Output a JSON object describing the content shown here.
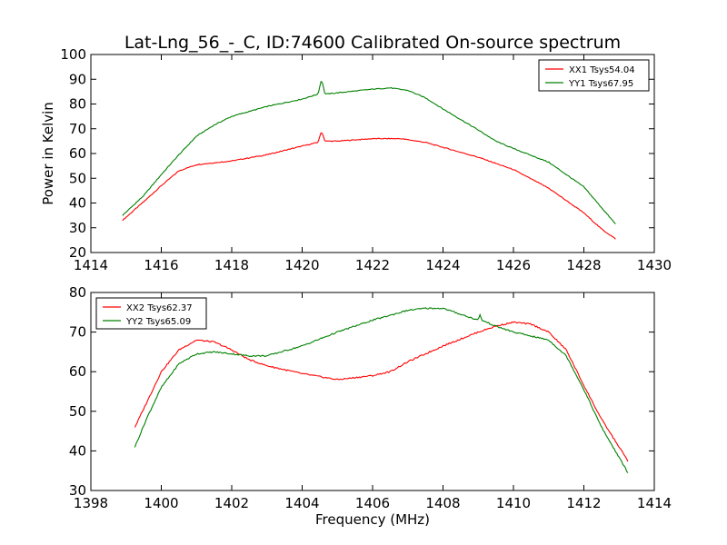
{
  "title": "Lat-Lng_56_-_C, ID:74600 Calibrated On-source spectrum",
  "xlabel": "Frequency (MHz)",
  "ylabel": "Power in Kelvin",
  "chart_data": [
    {
      "type": "line",
      "xlim": [
        1414,
        1430
      ],
      "ylim": [
        20,
        100
      ],
      "xticks": [
        1414,
        1416,
        1418,
        1420,
        1422,
        1424,
        1426,
        1428,
        1430
      ],
      "yticks": [
        20,
        30,
        40,
        50,
        60,
        70,
        80,
        90,
        100
      ],
      "legend_position": "top-right",
      "series": [
        {
          "name": "XX1 Tsys54.04",
          "color": "#ff0000",
          "x": [
            1414.9,
            1415.5,
            1416.0,
            1416.5,
            1417.0,
            1418.0,
            1419.0,
            1420.0,
            1420.45,
            1420.55,
            1420.65,
            1421.0,
            1422.0,
            1422.8,
            1423.5,
            1424.0,
            1425.0,
            1426.0,
            1427.0,
            1428.0,
            1428.5,
            1428.9
          ],
          "values": [
            33,
            40.5,
            47,
            53,
            55.5,
            57,
            59.5,
            63,
            64.5,
            69,
            65,
            65,
            66,
            66,
            64.5,
            62.5,
            58.5,
            53.5,
            46,
            36,
            29.5,
            25.5
          ]
        },
        {
          "name": "YY1 Tsys67.95",
          "color": "#008000",
          "x": [
            1414.9,
            1415.5,
            1416.0,
            1416.5,
            1417.0,
            1417.5,
            1418.0,
            1419.0,
            1420.0,
            1420.45,
            1420.55,
            1420.65,
            1421.0,
            1422.0,
            1422.5,
            1423.0,
            1423.5,
            1424.0,
            1425.0,
            1425.5,
            1426.0,
            1427.0,
            1428.0,
            1428.9
          ],
          "values": [
            35,
            43,
            51.5,
            59.5,
            67,
            71.5,
            75,
            79,
            82,
            84,
            90,
            84,
            84.5,
            86,
            86.5,
            85.5,
            82.5,
            78,
            69.5,
            65,
            62,
            56.5,
            46.5,
            31.5
          ]
        }
      ]
    },
    {
      "type": "line",
      "xlim": [
        1398,
        1414
      ],
      "ylim": [
        30,
        80
      ],
      "xticks": [
        1398,
        1400,
        1402,
        1404,
        1406,
        1408,
        1410,
        1412,
        1414
      ],
      "yticks": [
        30,
        40,
        50,
        60,
        70,
        80
      ],
      "legend_position": "top-left",
      "series": [
        {
          "name": "XX2 Tsys62.37",
          "color": "#ff0000",
          "x": [
            1399.25,
            1399.6,
            1400.0,
            1400.5,
            1401.0,
            1401.5,
            1402.0,
            1402.5,
            1403.0,
            1403.5,
            1404.0,
            1405.0,
            1406.0,
            1406.5,
            1407.0,
            1408.0,
            1409.0,
            1409.5,
            1410.0,
            1410.5,
            1411.0,
            1411.5,
            1412.0,
            1412.5,
            1413.25
          ],
          "values": [
            46,
            52.5,
            60,
            65.5,
            68,
            67.5,
            65.5,
            63,
            61.5,
            60.5,
            59.5,
            58,
            59,
            60,
            62.5,
            66.5,
            70,
            71.5,
            72.5,
            72,
            70,
            65.5,
            56.5,
            48,
            37.5
          ]
        },
        {
          "name": "YY2 Tsys65.09",
          "color": "#008000",
          "x": [
            1399.25,
            1399.6,
            1400.0,
            1400.5,
            1401.0,
            1401.5,
            1402.0,
            1402.5,
            1403.0,
            1404.0,
            1405.0,
            1406.0,
            1407.0,
            1407.5,
            1408.0,
            1408.5,
            1409.0,
            1409.05,
            1409.1,
            1409.5,
            1410.0,
            1411.0,
            1411.5,
            1412.0,
            1412.5,
            1413.25
          ],
          "values": [
            41,
            48.5,
            56,
            62,
            64.5,
            65,
            64.5,
            64,
            64,
            66.5,
            70,
            73,
            75.5,
            76,
            76,
            74.5,
            73,
            74.5,
            73,
            71.5,
            70,
            68,
            64,
            55.5,
            46,
            34.5
          ]
        }
      ]
    }
  ]
}
